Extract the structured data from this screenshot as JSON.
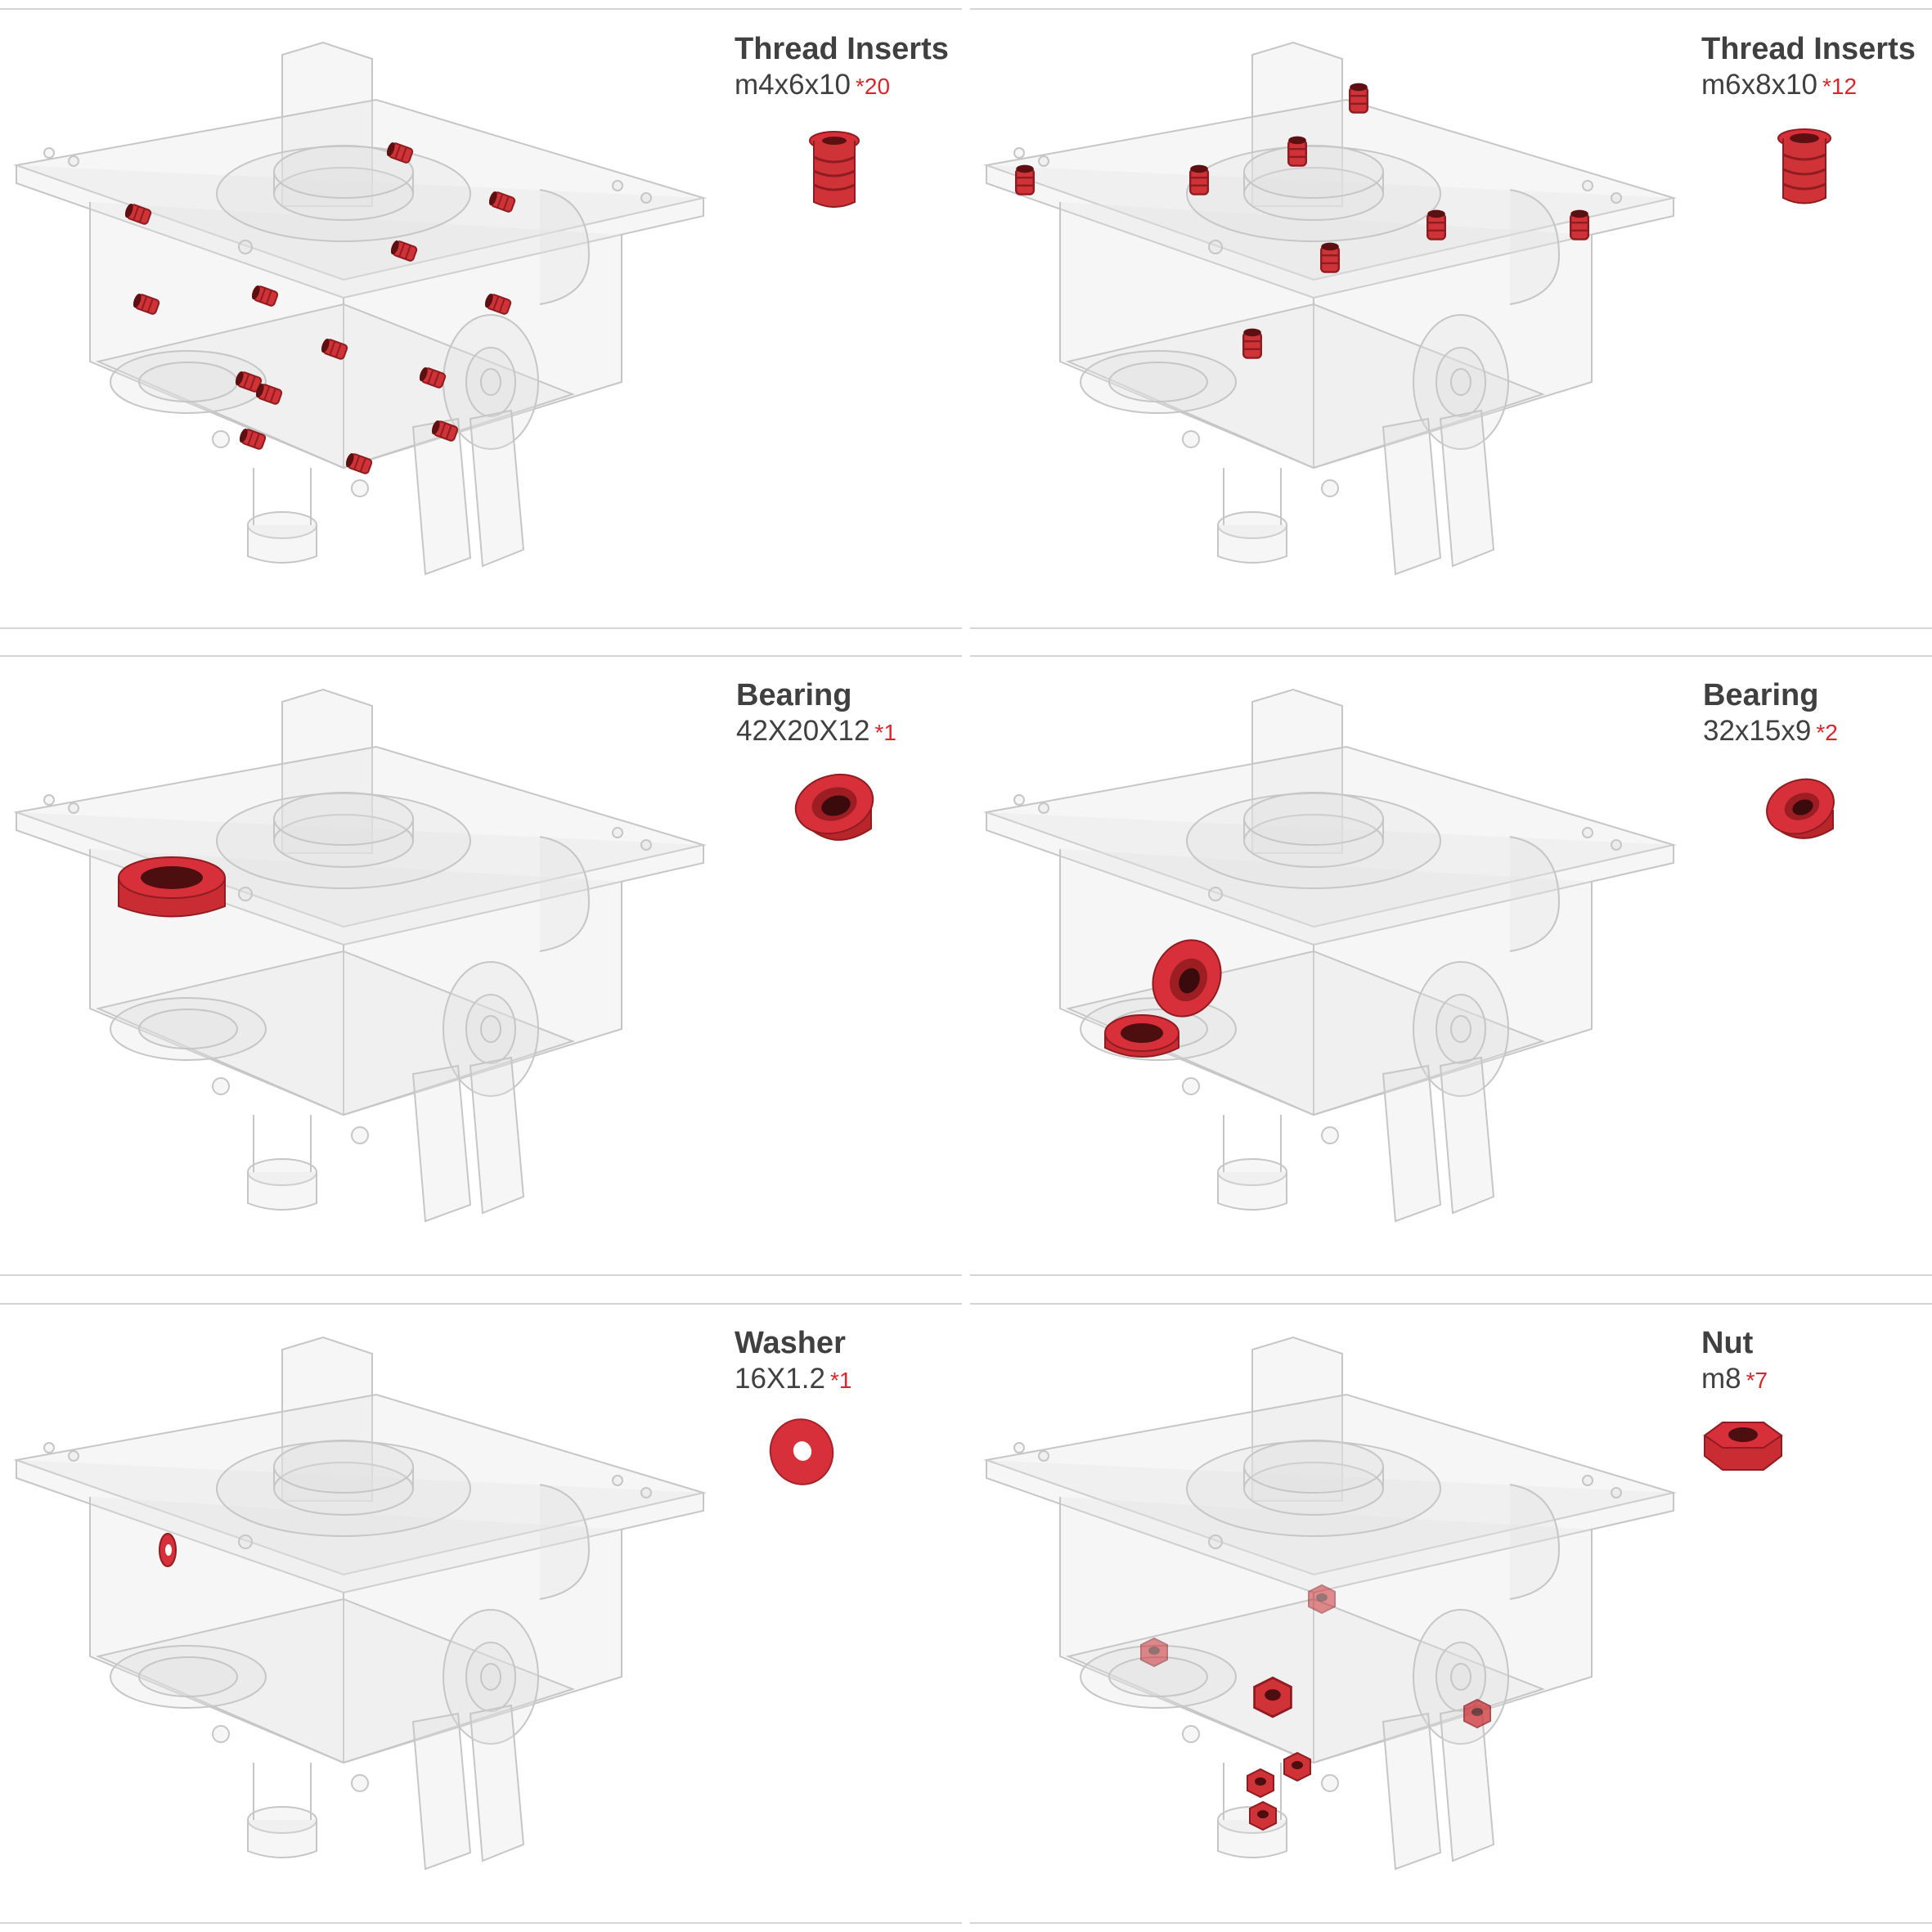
{
  "colors": {
    "accent_red": "#d8262c",
    "part_red": "#cf3237",
    "text": "#404040",
    "divider": "#d4d4d4",
    "ghost": "#c8c8c8"
  },
  "panels": [
    {
      "title": "Thread Inserts",
      "spec": "m4x6x10",
      "qty": "*20",
      "icon": "thread-insert-icon"
    },
    {
      "title": "Thread Inserts",
      "spec": "m6x8x10",
      "qty": "*12",
      "icon": "thread-insert-icon"
    },
    {
      "title": "Bearing",
      "spec": "42X20X12",
      "qty": "*1",
      "icon": "bearing-icon"
    },
    {
      "title": "Bearing",
      "spec": "32x15x9",
      "qty": "*2",
      "icon": "bearing-icon"
    },
    {
      "title": "Washer",
      "spec": "16X1.2",
      "qty": "*1",
      "icon": "washer-icon"
    },
    {
      "title": "Nut",
      "spec": "m8",
      "qty": "*7",
      "icon": "hex-nut-icon"
    }
  ]
}
